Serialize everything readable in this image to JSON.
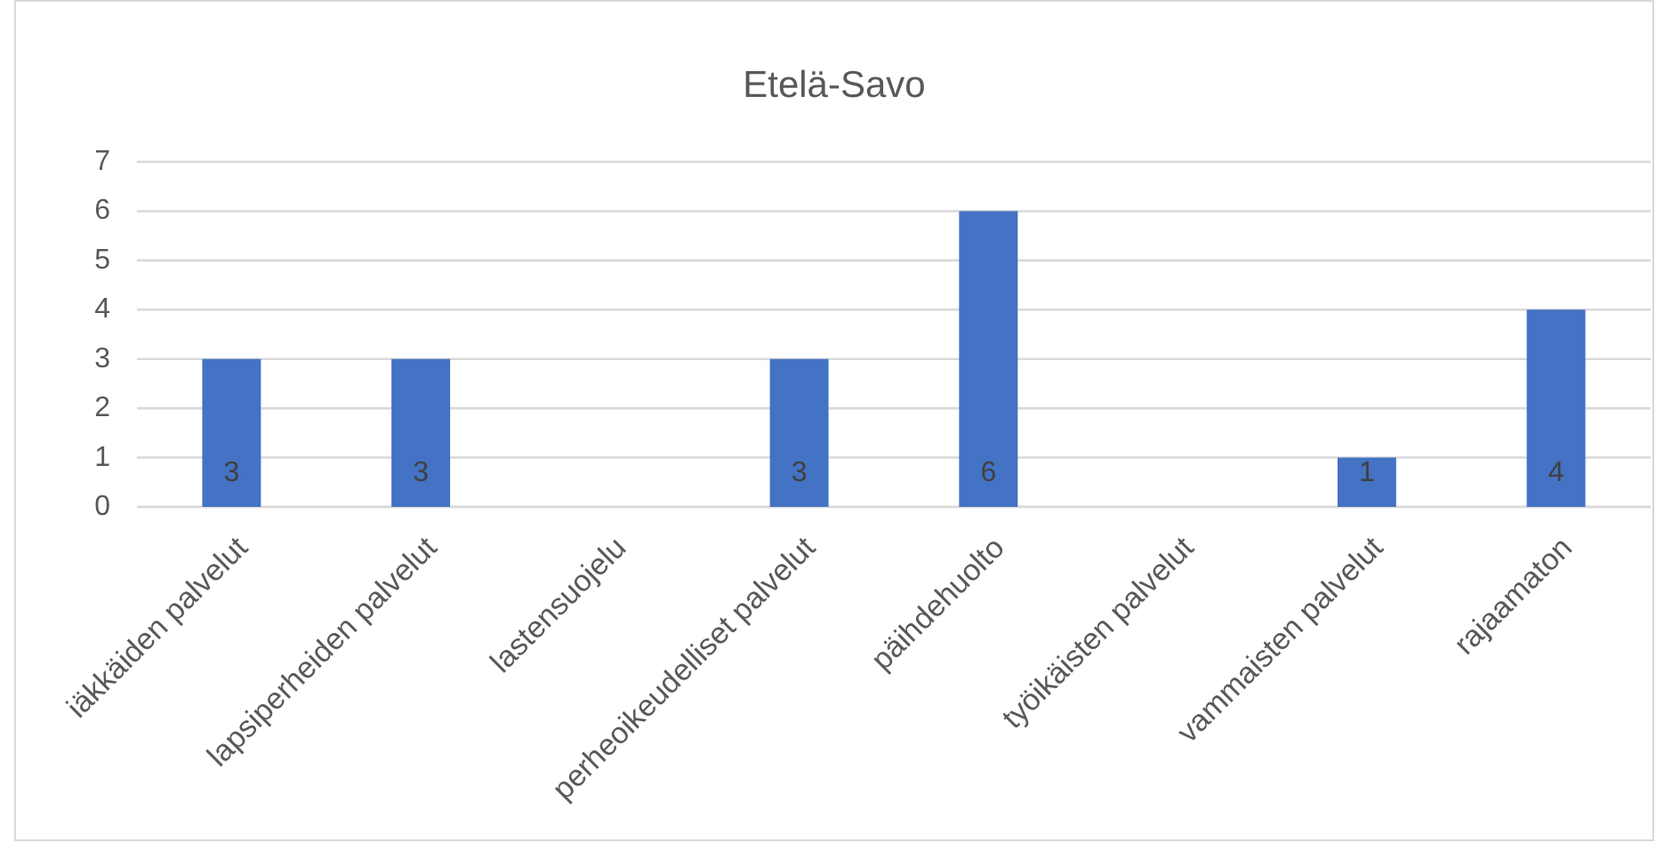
{
  "chart_data": {
    "type": "bar",
    "title": "Etelä-Savo",
    "categories": [
      "iäkkäiden palvelut",
      "lapsiperheiden palvelut",
      "lastensuojelu",
      "perheoikeudelliset palvelut",
      "päihdehuolto",
      "työikäisten palvelut",
      "vammaisten palvelut",
      "rajaamaton"
    ],
    "values": [
      3,
      3,
      null,
      3,
      6,
      null,
      1,
      4
    ],
    "color": "#4472c4",
    "ylim": [
      0,
      7
    ],
    "yticks": [
      0,
      1,
      2,
      3,
      4,
      5,
      6,
      7
    ],
    "grid": "y",
    "data_labels": true
  }
}
